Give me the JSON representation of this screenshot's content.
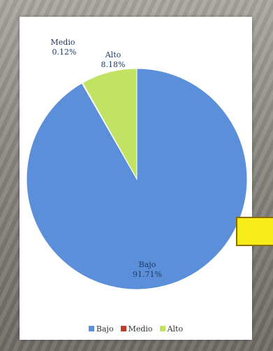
{
  "chart_data": {
    "type": "pie",
    "title": "",
    "slices": [
      {
        "name": "Bajo",
        "value": 91.71,
        "label": "91.71%",
        "color": "#5b8fd9"
      },
      {
        "name": "Medio",
        "value": 0.12,
        "label": "0.12%",
        "color": "#c0392b"
      },
      {
        "name": "Alto",
        "value": 8.18,
        "label": "8.18%",
        "color": "#c2e264"
      }
    ],
    "legend_position": "bottom"
  },
  "legend": [
    {
      "label": "Bajo",
      "color": "#5b8fd9"
    },
    {
      "label": "Medio",
      "color": "#c0392b"
    },
    {
      "label": "Alto",
      "color": "#c2e264"
    }
  ],
  "colors": {
    "background": "#8f8b86",
    "panel": "#ffffff",
    "arrow_fill": "#f7ec1a",
    "arrow_border": "#8a6d00"
  }
}
